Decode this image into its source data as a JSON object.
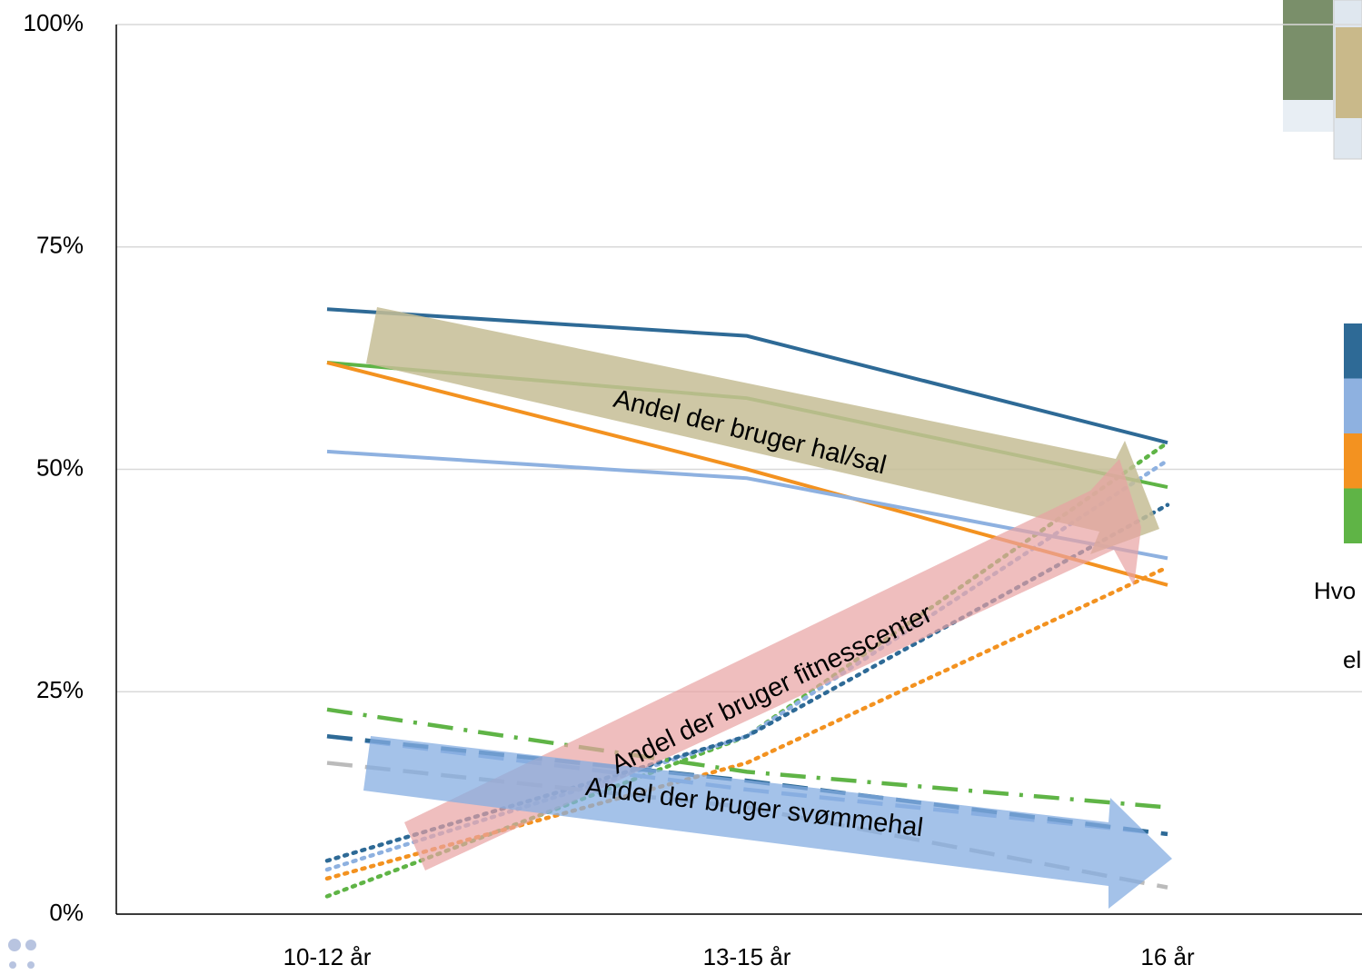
{
  "chart_data": {
    "type": "line",
    "categories": [
      "10-12 år",
      "13-15 år",
      "16 år"
    ],
    "ylim": [
      0,
      100
    ],
    "yticks": [
      {
        "value": 0,
        "label": "0%"
      },
      {
        "value": 25,
        "label": "25%"
      },
      {
        "value": 50,
        "label": "50%"
      },
      {
        "value": 75,
        "label": "75%"
      },
      {
        "value": 100,
        "label": "100%"
      }
    ],
    "grid": true,
    "series": [
      {
        "color": "#2e6a96",
        "style": "solid",
        "values": [
          68,
          65,
          53
        ]
      },
      {
        "color": "#8eb1e0",
        "style": "solid",
        "values": [
          52,
          49,
          40
        ]
      },
      {
        "color": "#f39220",
        "style": "solid",
        "values": [
          62,
          50,
          37
        ]
      },
      {
        "color": "#5fb446",
        "style": "solid",
        "values": [
          62,
          58,
          48
        ]
      },
      {
        "color": "#2e6a96",
        "style": "dash",
        "values": [
          20,
          15,
          9
        ]
      },
      {
        "color": "#8eb1e0",
        "style": "dash",
        "values": [
          20,
          14,
          9
        ]
      },
      {
        "color": "#bbbbbb",
        "style": "dash",
        "values": [
          17,
          12,
          3
        ]
      },
      {
        "color": "#5fb446",
        "style": "dashdot",
        "values": [
          23,
          16,
          12
        ]
      },
      {
        "color": "#2e6a96",
        "style": "dot",
        "values": [
          6,
          20,
          46
        ]
      },
      {
        "color": "#8eb1e0",
        "style": "dot",
        "values": [
          5,
          20,
          51
        ]
      },
      {
        "color": "#f39220",
        "style": "dot",
        "values": [
          4,
          17,
          39
        ]
      },
      {
        "color": "#5fb446",
        "style": "dot",
        "values": [
          2,
          20,
          53
        ]
      }
    ],
    "annotations": [
      "Andel der bruger hal/sal",
      "Andel der bruger fitnesscenter",
      "Andel der bruger svømmehal"
    ],
    "cut_texts": [
      "Hvo",
      "el"
    ]
  }
}
